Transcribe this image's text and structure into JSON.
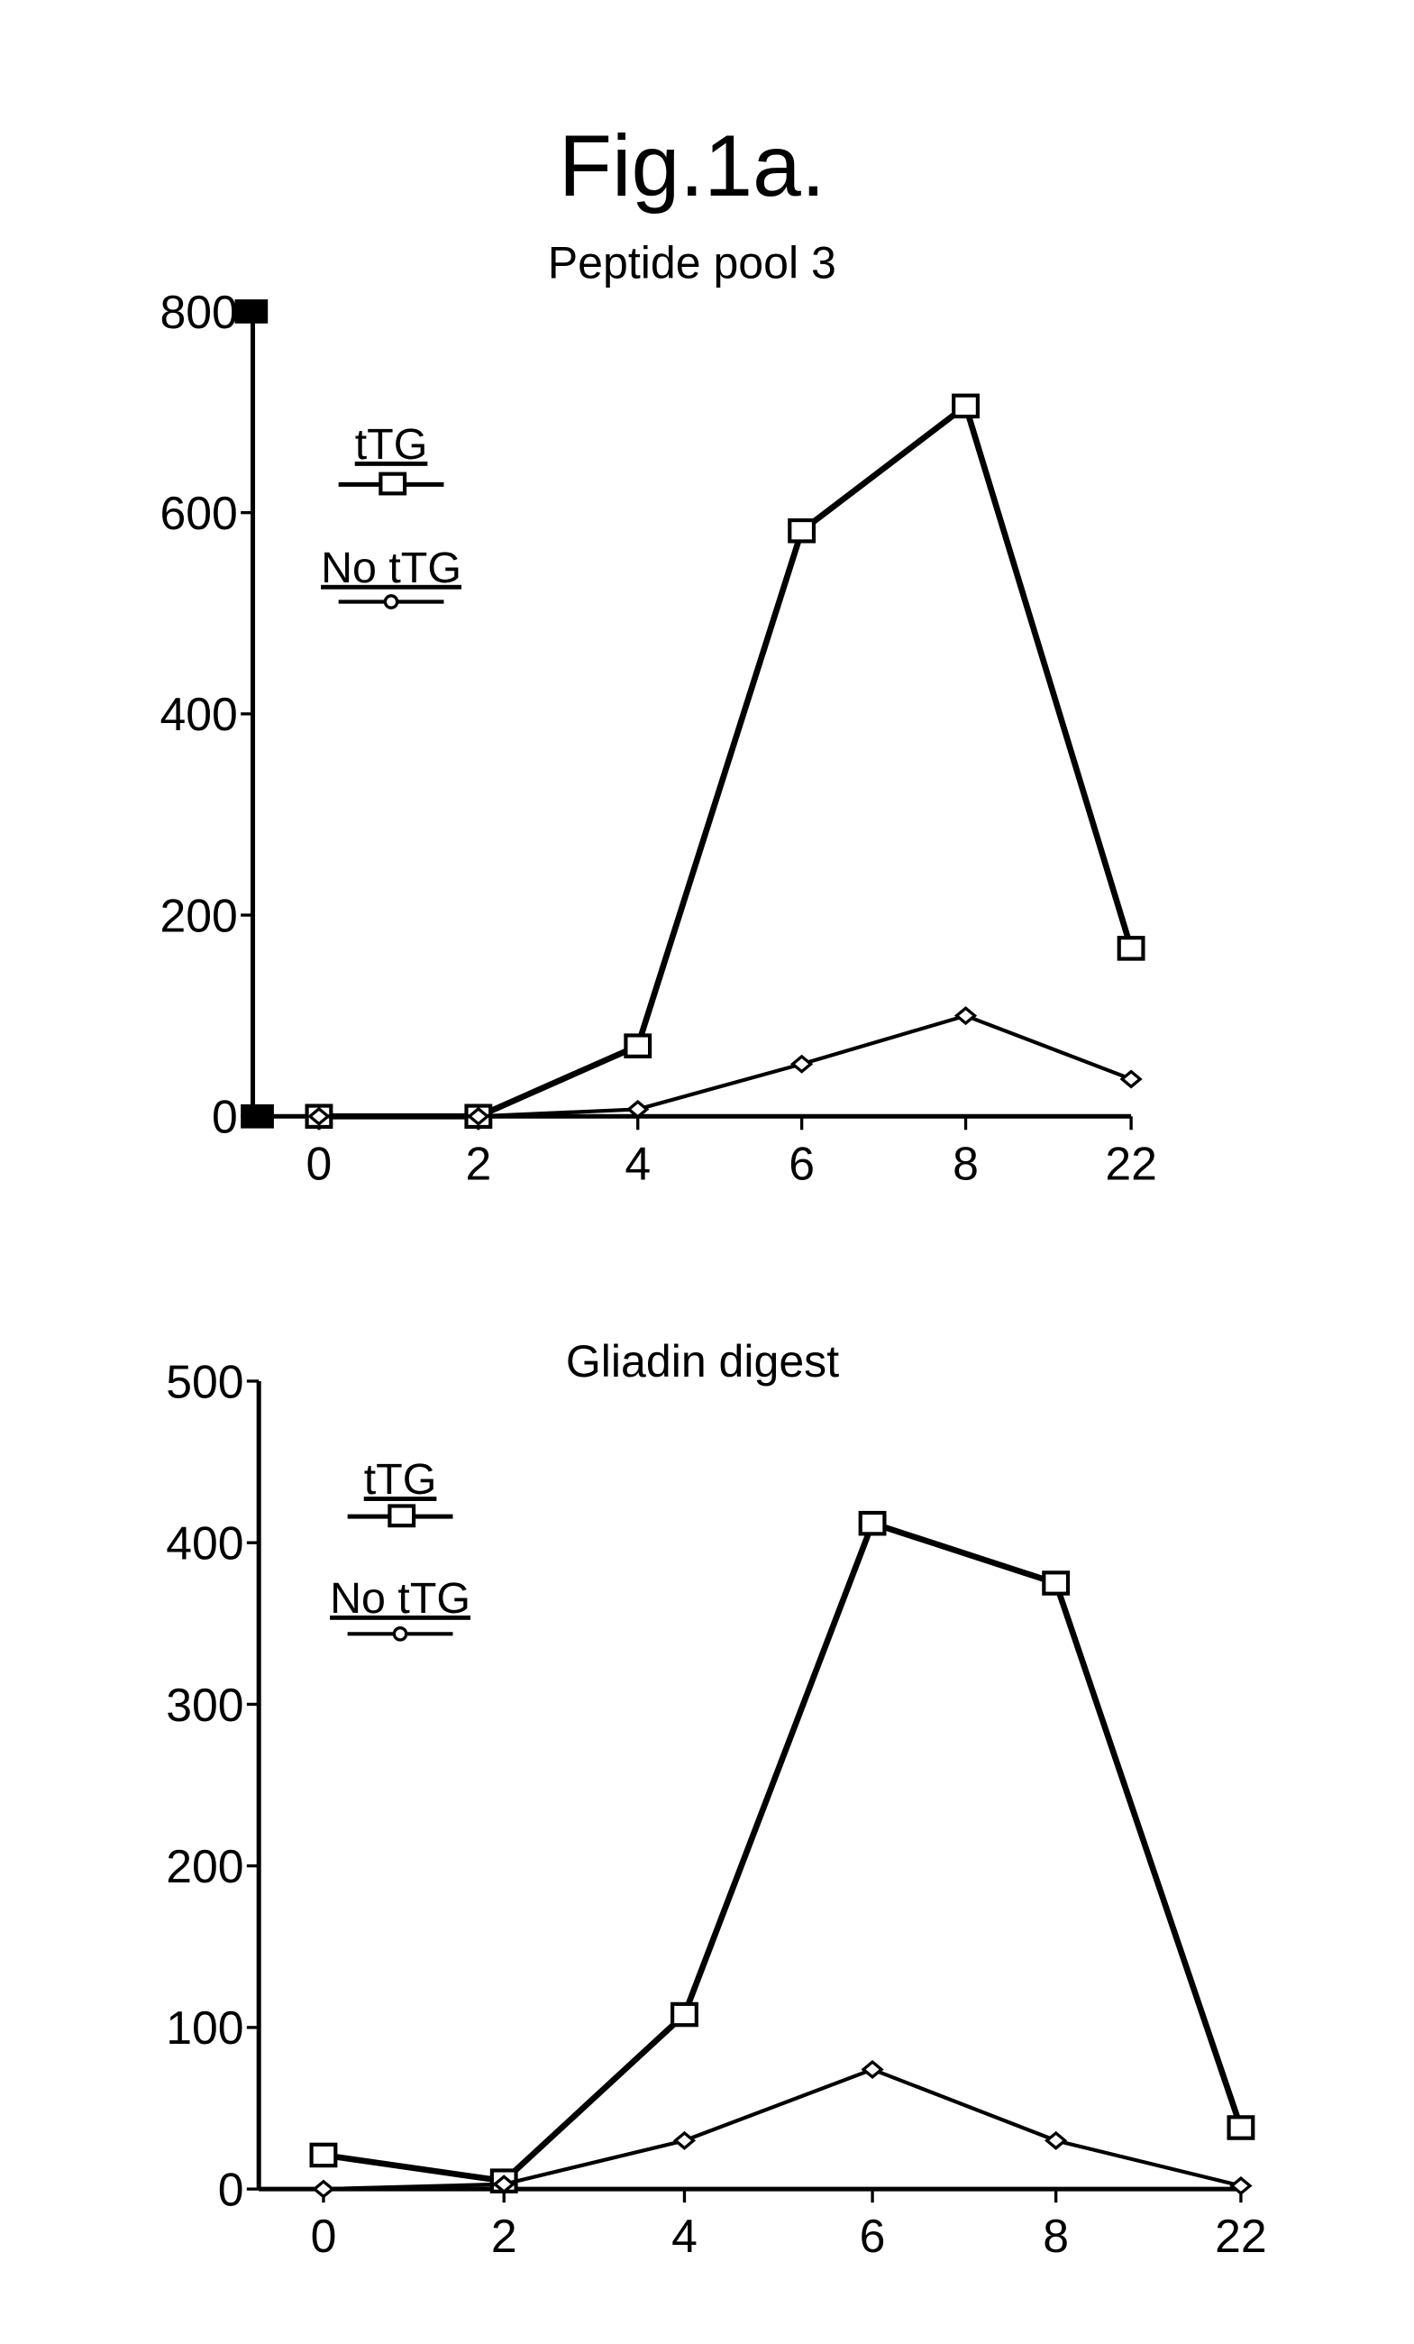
{
  "figure_title": "Fig.1a.",
  "chart_data": [
    {
      "type": "line",
      "title": "Peptide pool 3",
      "xlabel": "",
      "ylabel": "",
      "categories": [
        "0",
        "2",
        "4",
        "6",
        "8",
        "22"
      ],
      "yticks": [
        "0",
        "200",
        "400",
        "600",
        "800"
      ],
      "ylim": [
        0,
        800
      ],
      "grid": false,
      "legend_position": "top-left",
      "series": [
        {
          "name": "tTG",
          "marker": "square",
          "values": [
            0,
            0,
            70,
            582,
            706,
            167
          ]
        },
        {
          "name": "No tTG",
          "marker": "diamond",
          "values": [
            0,
            0,
            7,
            52,
            100,
            37
          ]
        }
      ]
    },
    {
      "type": "line",
      "title": "Gliadin digest",
      "xlabel": "",
      "ylabel": "",
      "categories": [
        "0",
        "2",
        "4",
        "6",
        "8",
        "22"
      ],
      "yticks": [
        "0",
        "100",
        "200",
        "300",
        "400",
        "500"
      ],
      "ylim": [
        0,
        500
      ],
      "grid": false,
      "legend_position": "top-left",
      "series": [
        {
          "name": "tTG",
          "marker": "square",
          "values": [
            21,
            5,
            108,
            412,
            375,
            38
          ]
        },
        {
          "name": "No tTG",
          "marker": "diamond",
          "values": [
            0,
            3,
            30,
            74,
            30,
            2
          ]
        }
      ]
    }
  ]
}
